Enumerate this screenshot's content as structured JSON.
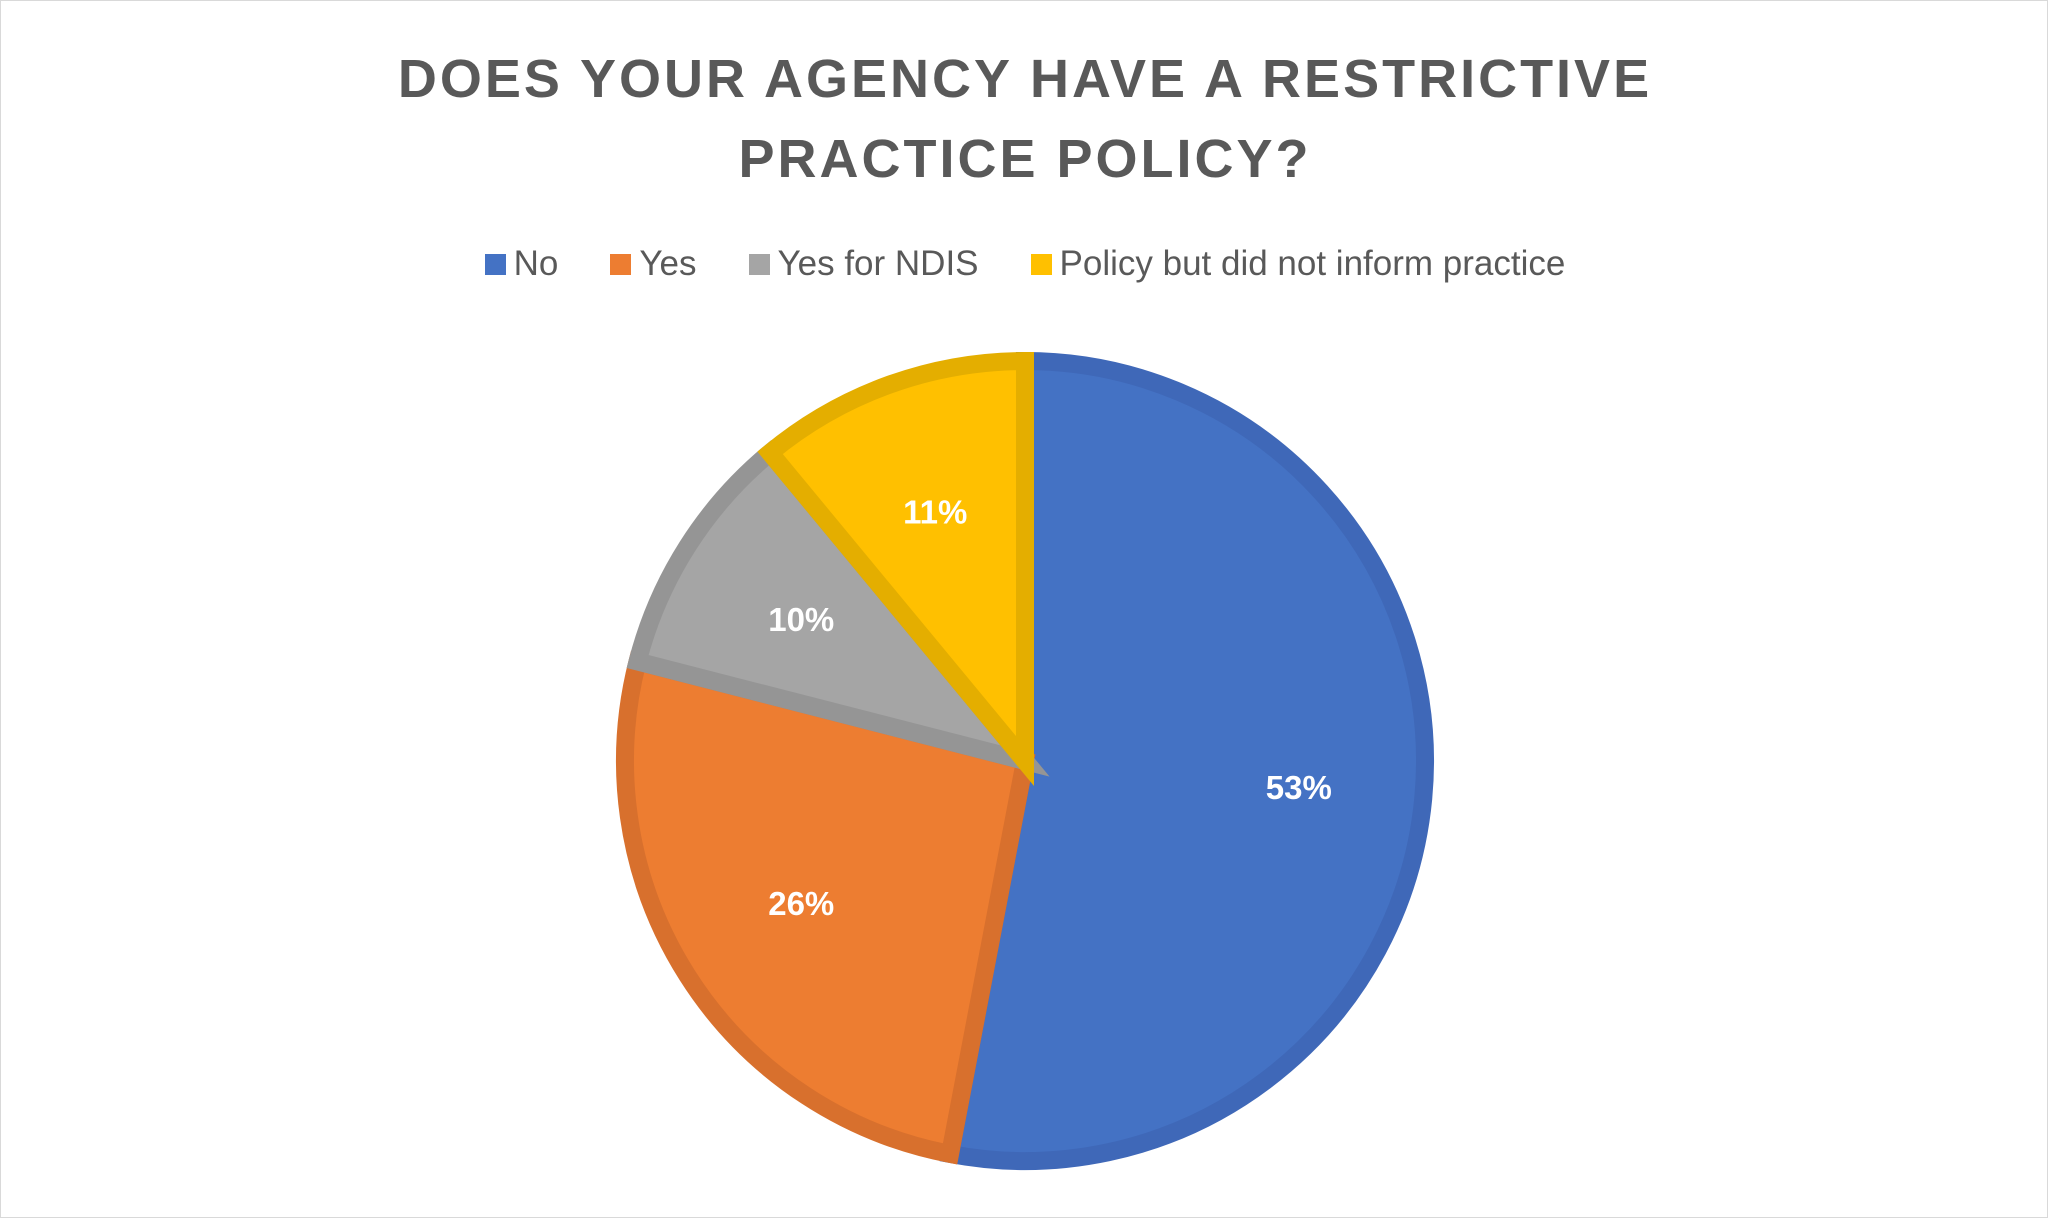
{
  "chart_data": {
    "type": "pie",
    "title": "DOES YOUR AGENCY HAVE A RESTRICTIVE PRACTICE POLICY?",
    "categories": [
      "No",
      "Yes",
      "Yes for NDIS",
      "Policy but did not inform practice"
    ],
    "values": [
      53,
      26,
      10,
      11
    ],
    "data_labels": [
      "53%",
      "26%",
      "10%",
      "11%"
    ],
    "colors": [
      "#4472C4",
      "#ED7D31",
      "#A5A5A5",
      "#FFC000"
    ],
    "border_colors": [
      "#3F68B8",
      "#D8702D",
      "#959595",
      "#E4AE00"
    ],
    "legend_position": "top",
    "start": "12 o'clock",
    "direction": "clockwise"
  }
}
